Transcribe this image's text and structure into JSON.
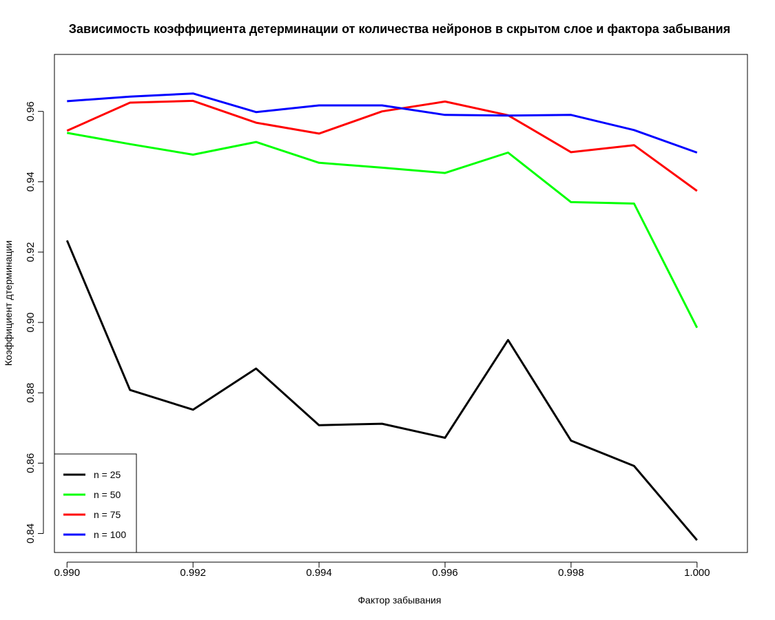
{
  "chart_data": {
    "type": "line",
    "title": "Зависимость коэффициента детерминации от количества нейронов в скрытом слое и фактора забывания",
    "xlabel": "Фактор забывания",
    "ylabel": "Коэффициент дтерминации",
    "x": [
      0.99,
      0.991,
      0.992,
      0.993,
      0.994,
      0.995,
      0.996,
      0.997,
      0.998,
      0.999,
      1.0
    ],
    "xlim": [
      0.9898,
      1.0008
    ],
    "ylim": [
      0.8346,
      0.9762
    ],
    "x_ticks": [
      "0.990",
      "0.992",
      "0.994",
      "0.996",
      "0.998",
      "1.000"
    ],
    "y_ticks": [
      "0.84",
      "0.86",
      "0.88",
      "0.90",
      "0.92",
      "0.94",
      "0.96"
    ],
    "legend_position": "bottom-left",
    "grid": false,
    "series": [
      {
        "name": "n = 25",
        "color": "#000000",
        "values": [
          0.9233,
          0.8808,
          0.8752,
          0.8869,
          0.8708,
          0.8712,
          0.8672,
          0.895,
          0.8664,
          0.8592,
          0.8381
        ]
      },
      {
        "name": "n = 50",
        "color": "#00ff00",
        "values": [
          0.9539,
          0.9507,
          0.9477,
          0.9513,
          0.9454,
          0.944,
          0.9425,
          0.9483,
          0.9342,
          0.9338,
          0.8985
        ]
      },
      {
        "name": "n = 75",
        "color": "#ff0000",
        "values": [
          0.9545,
          0.9625,
          0.963,
          0.9568,
          0.9537,
          0.96,
          0.9628,
          0.9589,
          0.9484,
          0.9504,
          0.9374
        ]
      },
      {
        "name": "n = 100",
        "color": "#0000ff",
        "values": [
          0.9629,
          0.9642,
          0.9651,
          0.9598,
          0.9617,
          0.9617,
          0.959,
          0.9588,
          0.959,
          0.9547,
          0.9483
        ]
      }
    ]
  }
}
